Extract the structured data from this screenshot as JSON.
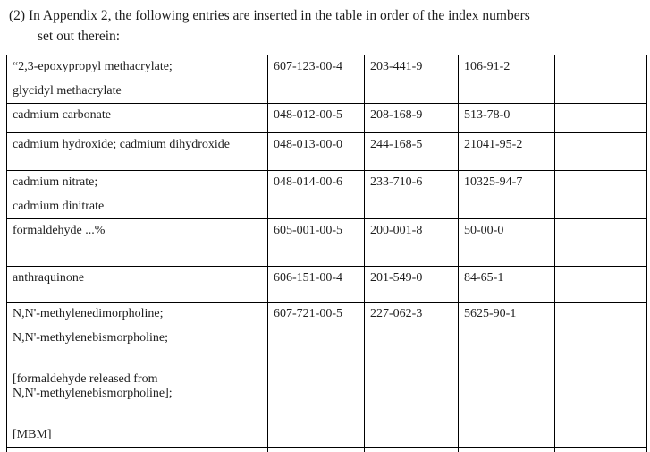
{
  "intro": {
    "line1": "(2) In Appendix 2, the following entries are inserted in the table in order of the index numbers",
    "line2": "set out therein:"
  },
  "table": {
    "rows": [
      {
        "substance": [
          "“2,3-epoxypropyl methacrylate;",
          "glycidyl methacrylate"
        ],
        "index_number": "607-123-00-4",
        "ec_number": "203-441-9",
        "cas_number": "106-91-2",
        "note": ""
      },
      {
        "substance": [
          "cadmium carbonate"
        ],
        "index_number": "048-012-00-5",
        "ec_number": "208-168-9",
        "cas_number": "513-78-0",
        "note": ""
      },
      {
        "substance": [
          "cadmium hydroxide; cadmium dihydroxide"
        ],
        "index_number": "048-013-00-0",
        "ec_number": "244-168-5",
        "cas_number": "21041-95-2",
        "note": ""
      },
      {
        "substance": [
          "cadmium nitrate;",
          "cadmium dinitrate"
        ],
        "index_number": "048-014-00-6",
        "ec_number": "233-710-6",
        "cas_number": "10325-94-7",
        "note": ""
      },
      {
        "substance": [
          "formaldehyde ...%"
        ],
        "index_number": "605-001-00-5",
        "ec_number": "200-001-8",
        "cas_number": "50-00-0",
        "note": ""
      },
      {
        "substance": [
          "anthraquinone"
        ],
        "index_number": "606-151-00-4",
        "ec_number": "201-549-0",
        "cas_number": "84-65-1",
        "note": ""
      },
      {
        "substance": [
          "N,N'-methylenedimorpholine;",
          "N,N'-methylenebismorpholine;",
          "",
          "[formaldehyde released from\nN,N'-methylenebismorpholine];",
          "",
          "[MBM]"
        ],
        "index_number": "607-721-00-5",
        "ec_number": "227-062-3",
        "cas_number": "5625-90-1",
        "note": ""
      },
      {
        "substance": [],
        "index_number": "",
        "ec_number": "",
        "cas_number": "",
        "note": ""
      }
    ]
  },
  "colors": {
    "text": "#1d1d1d",
    "border": "#000000",
    "background": "#ffffff"
  }
}
